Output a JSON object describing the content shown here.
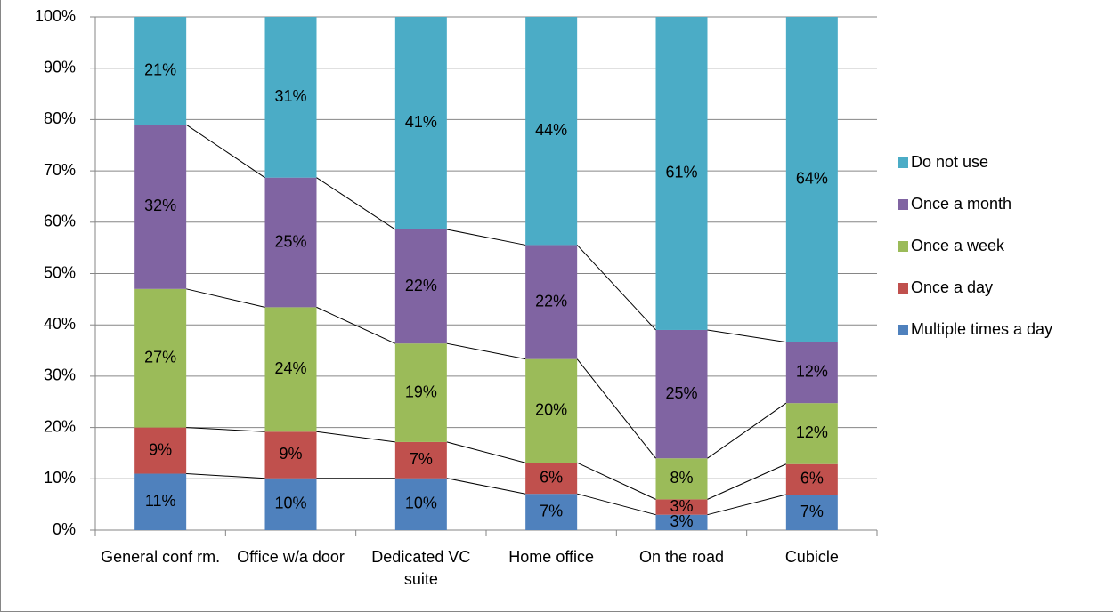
{
  "chart_data": {
    "type": "bar",
    "stacked": "percent",
    "categories": [
      "General conf rm.",
      "Office w/a door",
      "Dedicated VC suite",
      "Home office",
      "On the road",
      "Cubicle"
    ],
    "series": [
      {
        "name": "Multiple times a day",
        "color": "#4f81bd",
        "values": [
          11,
          10,
          10,
          7,
          3,
          7
        ],
        "value_labels": [
          "11%",
          "10%",
          "10%",
          "7%",
          "3%",
          "7%"
        ]
      },
      {
        "name": "Once a day",
        "color": "#c0504d",
        "values": [
          9,
          9,
          7,
          6,
          3,
          6
        ],
        "value_labels": [
          "9%",
          "9%",
          "7%",
          "6%",
          "3%",
          "6%"
        ]
      },
      {
        "name": "Once a week",
        "color": "#9bbb59",
        "values": [
          27,
          24,
          19,
          20,
          8,
          12
        ],
        "value_labels": [
          "27%",
          "24%",
          "19%",
          "20%",
          "8%",
          "12%"
        ]
      },
      {
        "name": "Once a month",
        "color": "#8064a2",
        "values": [
          32,
          25,
          22,
          22,
          25,
          12
        ],
        "value_labels": [
          "32%",
          "25%",
          "22%",
          "22%",
          "25%",
          "12%"
        ]
      },
      {
        "name": "Do not use",
        "color": "#4bacc6",
        "values": [
          21,
          31,
          41,
          44,
          61,
          64
        ],
        "value_labels": [
          "21%",
          "31%",
          "41%",
          "44%",
          "61%",
          "64%"
        ]
      }
    ],
    "ylim": [
      0,
      100
    ],
    "yticks": [
      {
        "value": 0,
        "label": "0%"
      },
      {
        "value": 10,
        "label": "10%"
      },
      {
        "value": 20,
        "label": "20%"
      },
      {
        "value": 30,
        "label": "30%"
      },
      {
        "value": 40,
        "label": "40%"
      },
      {
        "value": 50,
        "label": "50%"
      },
      {
        "value": 60,
        "label": "60%"
      },
      {
        "value": 70,
        "label": "70%"
      },
      {
        "value": 80,
        "label": "80%"
      },
      {
        "value": 90,
        "label": "90%"
      },
      {
        "value": 100,
        "label": "100%"
      }
    ],
    "grid": true,
    "series_lines": true,
    "legend": "right"
  }
}
